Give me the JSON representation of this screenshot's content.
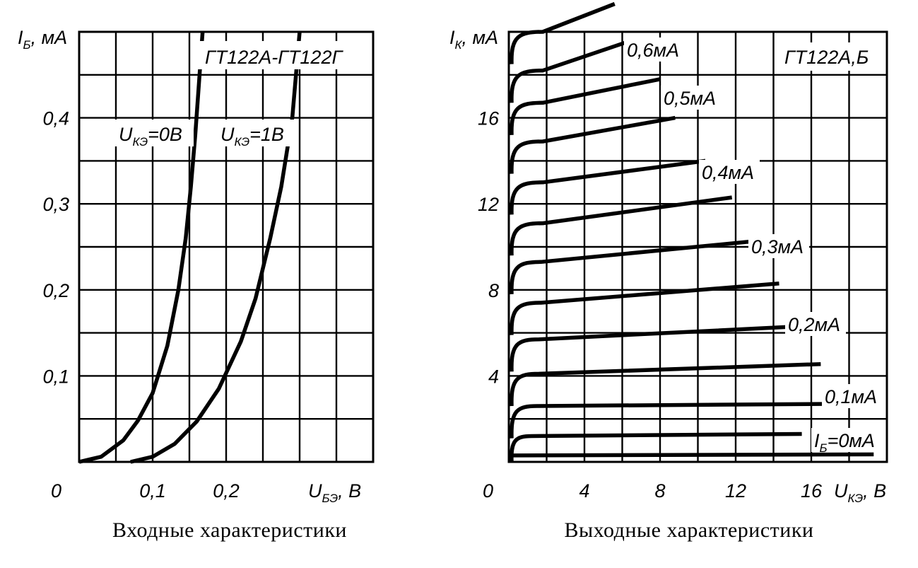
{
  "chart_data": [
    {
      "type": "line",
      "caption": "Входные характеристики",
      "title": "ГТ122А-ГТ122Г",
      "ylabel": {
        "main": "I",
        "sub": "Б",
        "unit": ", мА"
      },
      "xlabel": {
        "main": "U",
        "sub": "БЭ",
        "unit": ", В"
      },
      "origin_label": "0",
      "xlim": [
        0,
        0.4
      ],
      "ylim": [
        0,
        0.5
      ],
      "x_ticks": [
        {
          "value": 0.1,
          "label": "0,1"
        },
        {
          "value": 0.2,
          "label": "0,2"
        }
      ],
      "y_ticks": [
        {
          "value": 0.1,
          "label": "0,1"
        },
        {
          "value": 0.2,
          "label": "0,2"
        },
        {
          "value": 0.3,
          "label": "0,3"
        },
        {
          "value": 0.4,
          "label": "0,4"
        }
      ],
      "grid": true,
      "series": [
        {
          "name_main": "U",
          "name_sub": "КЭ",
          "name_rest": "=0В",
          "x": [
            0.0,
            0.03,
            0.06,
            0.08,
            0.1,
            0.12,
            0.135,
            0.145,
            0.152,
            0.158,
            0.163,
            0.168
          ],
          "y": [
            0.0,
            0.006,
            0.025,
            0.048,
            0.08,
            0.135,
            0.2,
            0.26,
            0.32,
            0.38,
            0.44,
            0.5
          ]
        },
        {
          "name_main": "U",
          "name_sub": "КЭ",
          "name_rest": "=1В",
          "x": [
            0.07,
            0.1,
            0.13,
            0.16,
            0.19,
            0.22,
            0.24,
            0.26,
            0.275,
            0.29,
            0.3
          ],
          "y": [
            0.0,
            0.006,
            0.021,
            0.047,
            0.085,
            0.14,
            0.19,
            0.26,
            0.32,
            0.4,
            0.5
          ]
        }
      ]
    },
    {
      "type": "line",
      "caption": "Выходные характеристики",
      "title": "ГТ122А,Б",
      "ylabel": {
        "main": "I",
        "sub": "К",
        "unit": ", мА"
      },
      "xlabel": {
        "main": "U",
        "sub": "КЭ",
        "unit": ", В"
      },
      "origin_label": "0",
      "xlim": [
        0,
        20
      ],
      "ylim": [
        0,
        20
      ],
      "x_ticks": [
        {
          "value": 4,
          "label": "4"
        },
        {
          "value": 8,
          "label": "8"
        },
        {
          "value": 12,
          "label": "12"
        },
        {
          "value": 16,
          "label": "16"
        }
      ],
      "y_ticks": [
        {
          "value": 4,
          "label": "4"
        },
        {
          "value": 8,
          "label": "8"
        },
        {
          "value": 12,
          "label": "12"
        },
        {
          "value": 16,
          "label": "16"
        }
      ],
      "grid": true,
      "series_labels": [
        {
          "main": "I",
          "sub": "Б",
          "rest": "=0мА"
        },
        {
          "text": "0,1мА"
        },
        {
          "text": "0,2мА"
        },
        {
          "text": "0,3мА"
        },
        {
          "text": "0,4мА"
        },
        {
          "text": "0,5мА"
        },
        {
          "text": "0,6мА"
        }
      ],
      "series": [
        {
          "ib": 0.0,
          "knee": 0.2,
          "x_end": 19.3,
          "y_sat": 0.3,
          "y_end": 0.35
        },
        {
          "ib": 0.05,
          "knee": 1.2,
          "x_end": 15.5,
          "y_sat": 1.2,
          "y_end": 1.3
        },
        {
          "ib": 0.1,
          "knee": 1.5,
          "x_end": 17.5,
          "y_sat": 2.6,
          "y_end": 2.7
        },
        {
          "ib": 0.15,
          "knee": 1.6,
          "x_end": 16.5,
          "y_sat": 4.1,
          "y_end": 4.55
        },
        {
          "ib": 0.2,
          "knee": 1.6,
          "x_end": 15.3,
          "y_sat": 5.7,
          "y_end": 6.3
        },
        {
          "ib": 0.25,
          "knee": 1.7,
          "x_end": 14.3,
          "y_sat": 7.4,
          "y_end": 8.3
        },
        {
          "ib": 0.3,
          "knee": 1.7,
          "x_end": 13.4,
          "y_sat": 9.3,
          "y_end": 10.3
        },
        {
          "ib": 0.35,
          "knee": 1.8,
          "x_end": 11.8,
          "y_sat": 11.1,
          "y_end": 12.3
        },
        {
          "ib": 0.4,
          "knee": 1.8,
          "x_end": 10.4,
          "y_sat": 13.0,
          "y_end": 14.0
        },
        {
          "ib": 0.45,
          "knee": 1.8,
          "x_end": 8.8,
          "y_sat": 14.9,
          "y_end": 16.0
        },
        {
          "ib": 0.5,
          "knee": 1.8,
          "x_end": 8.0,
          "y_sat": 16.7,
          "y_end": 17.8
        },
        {
          "ib": 0.55,
          "knee": 1.8,
          "x_end": 6.5,
          "y_sat": 18.2,
          "y_end": 19.6
        },
        {
          "ib": 0.6,
          "knee": 1.8,
          "x_end": 5.6,
          "y_sat": 20.0,
          "y_end": 21.3
        }
      ]
    }
  ]
}
